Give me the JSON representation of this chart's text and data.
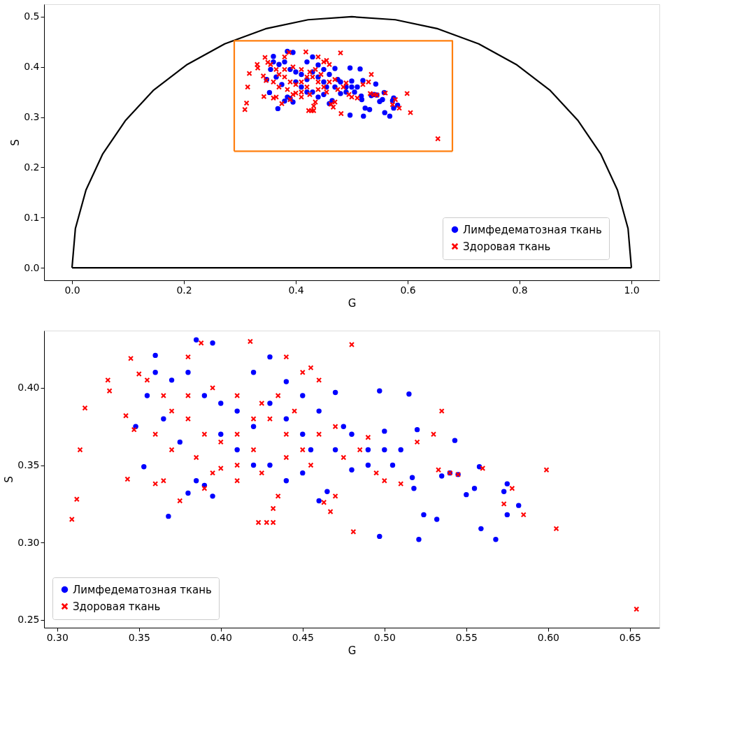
{
  "chart_data": [
    {
      "type": "scatter",
      "xlabel": "G",
      "ylabel": "S",
      "legend": "bottom right",
      "grid": false,
      "xlim": [
        -0.05,
        1.05
      ],
      "ylim": [
        -0.025,
        0.525
      ],
      "xticks": [
        {
          "value": 0,
          "label": "0.0"
        },
        {
          "value": 0.2,
          "label": "0.2"
        },
        {
          "value": 0.4,
          "label": "0.4"
        },
        {
          "value": 0.6,
          "label": "0.6"
        },
        {
          "value": 0.8,
          "label": "0.8"
        },
        {
          "value": 1.0,
          "label": "1.0"
        }
      ],
      "yticks": [
        {
          "value": 0,
          "label": "0.0"
        },
        {
          "value": 0.1,
          "label": "0.1"
        },
        {
          "value": 0.2,
          "label": "0.2"
        },
        {
          "value": 0.3,
          "label": "0.3"
        },
        {
          "value": 0.4,
          "label": "0.4"
        },
        {
          "value": 0.5,
          "label": "0.5"
        }
      ],
      "series": [
        {
          "name": "Лимфедематозная ткань",
          "color": "#0000ff",
          "marker": "circle",
          "x": [
            0.36,
            0.385,
            0.395,
            0.348,
            0.353,
            0.368,
            0.38,
            0.39,
            0.395,
            0.41,
            0.43,
            0.44,
            0.45,
            0.46,
            0.465,
            0.47,
            0.48,
            0.49,
            0.497,
            0.497,
            0.5,
            0.51,
            0.515,
            0.517,
            0.518,
            0.52,
            0.521,
            0.524,
            0.532,
            0.535,
            0.54,
            0.543,
            0.545,
            0.55,
            0.555,
            0.558,
            0.559,
            0.568,
            0.573,
            0.575,
            0.575,
            0.582,
            0.5,
            0.505,
            0.37,
            0.365,
            0.375,
            0.385,
            0.42,
            0.43,
            0.44,
            0.42,
            0.4,
            0.41,
            0.45,
            0.455,
            0.46,
            0.47,
            0.475,
            0.48,
            0.49,
            0.44,
            0.45,
            0.43,
            0.42,
            0.4,
            0.39,
            0.38,
            0.355,
            0.36
          ],
          "values": [
            0.421,
            0.431,
            0.429,
            0.375,
            0.349,
            0.317,
            0.332,
            0.337,
            0.33,
            0.36,
            0.39,
            0.38,
            0.37,
            0.327,
            0.333,
            0.397,
            0.37,
            0.35,
            0.398,
            0.304,
            0.372,
            0.36,
            0.396,
            0.342,
            0.335,
            0.373,
            0.302,
            0.318,
            0.315,
            0.343,
            0.345,
            0.366,
            0.344,
            0.331,
            0.335,
            0.349,
            0.309,
            0.302,
            0.333,
            0.338,
            0.318,
            0.324,
            0.36,
            0.35,
            0.405,
            0.38,
            0.365,
            0.34,
            0.41,
            0.42,
            0.404,
            0.375,
            0.39,
            0.385,
            0.395,
            0.36,
            0.385,
            0.36,
            0.375,
            0.347,
            0.36,
            0.34,
            0.345,
            0.35,
            0.35,
            0.37,
            0.395,
            0.41,
            0.395,
            0.41
          ]
        },
        {
          "name": "Здоровая ткань",
          "color": "#ff0000",
          "marker": "cross",
          "x": [
            0.309,
            0.312,
            0.314,
            0.317,
            0.331,
            0.332,
            0.342,
            0.343,
            0.345,
            0.347,
            0.35,
            0.36,
            0.365,
            0.37,
            0.375,
            0.38,
            0.388,
            0.39,
            0.4,
            0.41,
            0.418,
            0.42,
            0.423,
            0.428,
            0.432,
            0.432,
            0.435,
            0.44,
            0.45,
            0.455,
            0.46,
            0.463,
            0.467,
            0.47,
            0.48,
            0.481,
            0.49,
            0.495,
            0.5,
            0.51,
            0.52,
            0.53,
            0.533,
            0.535,
            0.54,
            0.545,
            0.56,
            0.573,
            0.578,
            0.585,
            0.599,
            0.605,
            0.654,
            0.38,
            0.39,
            0.4,
            0.41,
            0.42,
            0.43,
            0.44,
            0.45,
            0.46,
            0.47,
            0.38,
            0.395,
            0.41,
            0.425,
            0.435,
            0.445,
            0.36,
            0.37,
            0.365,
            0.355,
            0.385,
            0.395,
            0.41,
            0.425,
            0.44,
            0.455,
            0.475,
            0.485
          ],
          "values": [
            0.315,
            0.328,
            0.36,
            0.387,
            0.405,
            0.398,
            0.382,
            0.341,
            0.419,
            0.373,
            0.409,
            0.338,
            0.34,
            0.36,
            0.327,
            0.42,
            0.429,
            0.335,
            0.348,
            0.34,
            0.43,
            0.38,
            0.313,
            0.313,
            0.313,
            0.322,
            0.33,
            0.42,
            0.41,
            0.413,
            0.405,
            0.326,
            0.32,
            0.33,
            0.428,
            0.307,
            0.368,
            0.345,
            0.34,
            0.338,
            0.365,
            0.37,
            0.347,
            0.385,
            0.345,
            0.344,
            0.348,
            0.325,
            0.335,
            0.318,
            0.347,
            0.309,
            0.257,
            0.38,
            0.37,
            0.365,
            0.37,
            0.36,
            0.38,
            0.37,
            0.36,
            0.37,
            0.375,
            0.395,
            0.4,
            0.395,
            0.39,
            0.395,
            0.385,
            0.37,
            0.385,
            0.395,
            0.405,
            0.355,
            0.345,
            0.35,
            0.345,
            0.355,
            0.35,
            0.355,
            0.36
          ]
        },
        {
          "type": "line",
          "color": "#000000",
          "x": [
            0,
            0.006,
            0.025,
            0.055,
            0.096,
            0.146,
            0.206,
            0.273,
            0.346,
            0.422,
            0.5,
            0.578,
            0.654,
            0.727,
            0.794,
            0.854,
            0.904,
            0.945,
            0.975,
            0.994,
            1
          ],
          "values": [
            0,
            0.078,
            0.155,
            0.227,
            0.294,
            0.354,
            0.405,
            0.446,
            0.476,
            0.494,
            0.5,
            0.494,
            0.476,
            0.446,
            0.405,
            0.354,
            0.294,
            0.227,
            0.155,
            0.078,
            0
          ]
        },
        {
          "type": "line",
          "color": "#000000",
          "x": [
            0,
            1
          ],
          "values": [
            0,
            0
          ]
        },
        {
          "type": "line",
          "color": "#ff7f0e",
          "x": [
            0.29,
            0.29,
            0.68,
            0.68
          ],
          "values": [
            0.232,
            0.452,
            0.452,
            0.232
          ]
        },
        {
          "type": "line",
          "color": "#ff7f0e",
          "x": [
            0.29,
            0.68
          ],
          "values": [
            0.232,
            0.232
          ]
        }
      ]
    },
    {
      "type": "scatter",
      "xlabel": "G",
      "ylabel": "S",
      "legend": "bottom left",
      "grid": false,
      "xlim": [
        0.292,
        0.668
      ],
      "ylim": [
        0.245,
        0.437
      ],
      "xticks": [
        {
          "value": 0.3,
          "label": "0.30"
        },
        0.35,
        {
          "value": 0.4,
          "label": "0.40"
        },
        0.45,
        {
          "value": 0.5,
          "label": "0.50"
        },
        0.55,
        {
          "value": 0.6,
          "label": "0.60"
        },
        0.65
      ],
      "yticks": [
        0.25,
        {
          "value": 0.3,
          "label": "0.30"
        },
        0.35,
        {
          "value": 0.4,
          "label": "0.40"
        }
      ],
      "series": [
        {
          "name": "Лимфедематозная ткань",
          "color": "#0000ff",
          "marker": "circle",
          "x": [
            0.36,
            0.385,
            0.395,
            0.348,
            0.353,
            0.368,
            0.38,
            0.39,
            0.395,
            0.41,
            0.43,
            0.44,
            0.45,
            0.46,
            0.465,
            0.47,
            0.48,
            0.49,
            0.497,
            0.497,
            0.5,
            0.51,
            0.515,
            0.517,
            0.518,
            0.52,
            0.521,
            0.524,
            0.532,
            0.535,
            0.54,
            0.543,
            0.545,
            0.55,
            0.555,
            0.558,
            0.559,
            0.568,
            0.573,
            0.575,
            0.575,
            0.582,
            0.5,
            0.505,
            0.37,
            0.365,
            0.375,
            0.385,
            0.42,
            0.43,
            0.44,
            0.42,
            0.4,
            0.41,
            0.45,
            0.455,
            0.46,
            0.47,
            0.475,
            0.48,
            0.49,
            0.44,
            0.45,
            0.43,
            0.42,
            0.4,
            0.39,
            0.38,
            0.355,
            0.36
          ],
          "values": [
            0.421,
            0.431,
            0.429,
            0.375,
            0.349,
            0.317,
            0.332,
            0.337,
            0.33,
            0.36,
            0.39,
            0.38,
            0.37,
            0.327,
            0.333,
            0.397,
            0.37,
            0.35,
            0.398,
            0.304,
            0.372,
            0.36,
            0.396,
            0.342,
            0.335,
            0.373,
            0.302,
            0.318,
            0.315,
            0.343,
            0.345,
            0.366,
            0.344,
            0.331,
            0.335,
            0.349,
            0.309,
            0.302,
            0.333,
            0.338,
            0.318,
            0.324,
            0.36,
            0.35,
            0.405,
            0.38,
            0.365,
            0.34,
            0.41,
            0.42,
            0.404,
            0.375,
            0.39,
            0.385,
            0.395,
            0.36,
            0.385,
            0.36,
            0.375,
            0.347,
            0.36,
            0.34,
            0.345,
            0.35,
            0.35,
            0.37,
            0.395,
            0.41,
            0.395,
            0.41
          ]
        },
        {
          "name": "Здоровая ткань",
          "color": "#ff0000",
          "marker": "cross",
          "x": [
            0.309,
            0.312,
            0.314,
            0.317,
            0.331,
            0.332,
            0.342,
            0.343,
            0.345,
            0.347,
            0.35,
            0.36,
            0.365,
            0.37,
            0.375,
            0.38,
            0.388,
            0.39,
            0.4,
            0.41,
            0.418,
            0.42,
            0.423,
            0.428,
            0.432,
            0.432,
            0.435,
            0.44,
            0.45,
            0.455,
            0.46,
            0.463,
            0.467,
            0.47,
            0.48,
            0.481,
            0.49,
            0.495,
            0.5,
            0.51,
            0.52,
            0.53,
            0.533,
            0.535,
            0.54,
            0.545,
            0.56,
            0.573,
            0.578,
            0.585,
            0.599,
            0.605,
            0.654,
            0.38,
            0.39,
            0.4,
            0.41,
            0.42,
            0.43,
            0.44,
            0.45,
            0.46,
            0.47,
            0.38,
            0.395,
            0.41,
            0.425,
            0.435,
            0.445,
            0.36,
            0.37,
            0.365,
            0.355,
            0.385,
            0.395,
            0.41,
            0.425,
            0.44,
            0.455,
            0.475,
            0.485
          ],
          "values": [
            0.315,
            0.328,
            0.36,
            0.387,
            0.405,
            0.398,
            0.382,
            0.341,
            0.419,
            0.373,
            0.409,
            0.338,
            0.34,
            0.36,
            0.327,
            0.42,
            0.429,
            0.335,
            0.348,
            0.34,
            0.43,
            0.38,
            0.313,
            0.313,
            0.313,
            0.322,
            0.33,
            0.42,
            0.41,
            0.413,
            0.405,
            0.326,
            0.32,
            0.33,
            0.428,
            0.307,
            0.368,
            0.345,
            0.34,
            0.338,
            0.365,
            0.37,
            0.347,
            0.385,
            0.345,
            0.344,
            0.348,
            0.325,
            0.335,
            0.318,
            0.347,
            0.309,
            0.257,
            0.38,
            0.37,
            0.365,
            0.37,
            0.36,
            0.38,
            0.37,
            0.36,
            0.37,
            0.375,
            0.395,
            0.4,
            0.395,
            0.39,
            0.395,
            0.385,
            0.37,
            0.385,
            0.395,
            0.405,
            0.355,
            0.345,
            0.35,
            0.345,
            0.355,
            0.35,
            0.355,
            0.36
          ]
        }
      ]
    }
  ]
}
